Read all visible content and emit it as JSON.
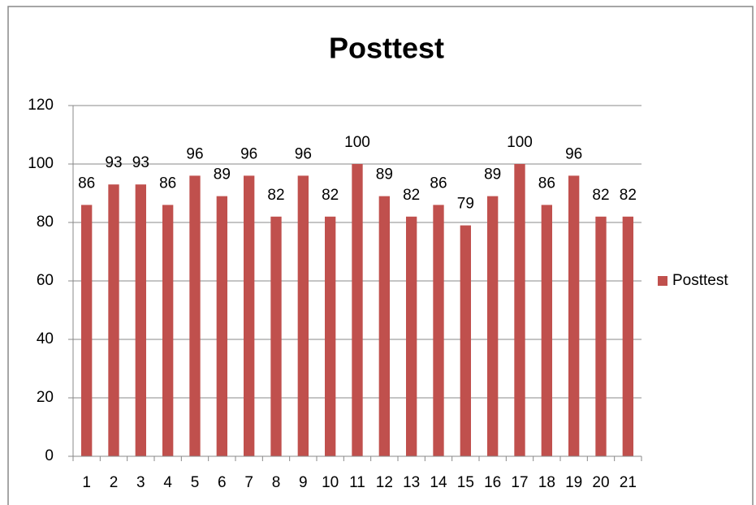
{
  "chart_data": {
    "type": "bar",
    "title": "Posttest",
    "categories": [
      "1",
      "2",
      "3",
      "4",
      "5",
      "6",
      "7",
      "8",
      "9",
      "10",
      "11",
      "12",
      "13",
      "14",
      "15",
      "16",
      "17",
      "18",
      "19",
      "20",
      "21"
    ],
    "series": [
      {
        "name": "Posttest",
        "color": "#c0504d",
        "values": [
          86,
          93,
          93,
          86,
          96,
          89,
          96,
          82,
          96,
          82,
          100,
          89,
          82,
          86,
          79,
          89,
          100,
          86,
          96,
          82,
          82
        ]
      }
    ],
    "ylim": [
      0,
      120
    ],
    "yticks": [
      0,
      20,
      40,
      60,
      80,
      100,
      120
    ],
    "grid": true,
    "legend": "right",
    "data_labels": true
  }
}
